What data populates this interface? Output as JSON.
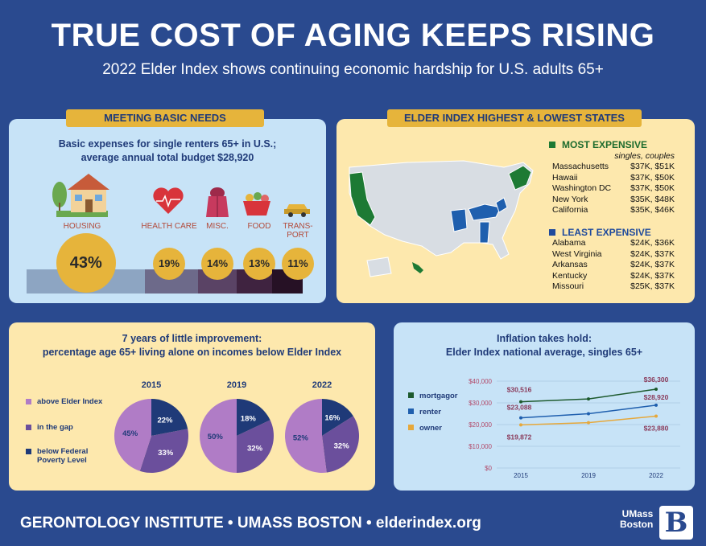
{
  "header": {
    "title": "TRUE COST OF AGING KEEPS RISING",
    "subtitle": "2022 Elder Index shows continuing economic hardship for U.S. adults 65+"
  },
  "basic_needs": {
    "tag": "MEETING BASIC NEEDS",
    "heading_line1": "Basic expenses for single renters 65+ in U.S.;",
    "heading_line2": "average annual total budget $28,920"
  },
  "states": {
    "tag": "ELDER INDEX HIGHEST & LOWEST STATES",
    "most_label": "MOST EXPENSIVE",
    "least_label": "LEAST EXPENSIVE",
    "subheader": "singles, couples",
    "most": [
      {
        "state": "Massachusetts",
        "value": "$37K, $51K"
      },
      {
        "state": "Hawaii",
        "value": "$37K, $50K"
      },
      {
        "state": "Washington DC",
        "value": "$37K, $50K"
      },
      {
        "state": "New York",
        "value": "$35K, $48K"
      },
      {
        "state": "California",
        "value": "$35K, $46K"
      }
    ],
    "least": [
      {
        "state": "Alabama",
        "value": "$24K, $36K"
      },
      {
        "state": "West Virginia",
        "value": "$24K, $37K"
      },
      {
        "state": "Arkansas",
        "value": "$24K, $37K"
      },
      {
        "state": "Kentucky",
        "value": "$24K, $37K"
      },
      {
        "state": "Missouri",
        "value": "$25K, $37K"
      }
    ],
    "colors": {
      "most": "#1d7a34",
      "least": "#1f5fae",
      "other": "#d8dde3"
    }
  },
  "pies": {
    "heading_line1": "7 years of little improvement:",
    "heading_line2": "percentage age 65+ living alone on incomes below Elder Index",
    "legend": [
      {
        "label": "above Elder Index",
        "color": "#b07cc6"
      },
      {
        "label": "in the gap",
        "color": "#6b4f9c"
      },
      {
        "label": "below Federal",
        "label2": "Poverty Level",
        "color": "#1f3a78"
      }
    ]
  },
  "inflation": {
    "heading_line1": "Inflation takes hold:",
    "heading_line2": "Elder Index national average, singles 65+"
  },
  "footer": {
    "text": "GERONTOLOGY INSTITUTE • UMASS BOSTON • elderindex.org",
    "logo_line1": "UMass",
    "logo_line2": "Boston",
    "logo_letter": "B"
  },
  "chart_data": [
    {
      "type": "bar",
      "categories": [
        "HOUSING",
        "HEALTH CARE",
        "MISC.",
        "FOOD",
        "TRANS-PORT"
      ],
      "values": [
        43,
        19,
        14,
        13,
        11
      ],
      "value_labels": [
        "43%",
        "19%",
        "14%",
        "13%",
        "11%"
      ],
      "colors": [
        "#8da5c2",
        "#6d6a8a",
        "#5a4365",
        "#3f2340",
        "#261125"
      ]
    },
    {
      "type": "pie",
      "years": [
        {
          "year": "2015",
          "slices": [
            {
              "name": "below Federal Poverty Level",
              "value": 22,
              "label": "22%"
            },
            {
              "name": "in the gap",
              "value": 33,
              "label": "33%"
            },
            {
              "name": "above Elder Index",
              "value": 45,
              "label": "45%"
            }
          ]
        },
        {
          "year": "2019",
          "slices": [
            {
              "name": "below Federal Poverty Level",
              "value": 18,
              "label": "18%"
            },
            {
              "name": "in the gap",
              "value": 32,
              "label": "32%"
            },
            {
              "name": "above Elder Index",
              "value": 50,
              "label": "50%"
            }
          ]
        },
        {
          "year": "2022",
          "slices": [
            {
              "name": "below Federal Poverty Level",
              "value": 16,
              "label": "16%"
            },
            {
              "name": "in the gap",
              "value": 32,
              "label": "32%"
            },
            {
              "name": "above Elder Index",
              "value": 52,
              "label": "52%"
            }
          ]
        }
      ],
      "colors": {
        "below Federal Poverty Level": "#1f3a78",
        "in the gap": "#6b4f9c",
        "above Elder Index": "#b07cc6"
      }
    },
    {
      "type": "line",
      "x": [
        "2015",
        "2019",
        "2022"
      ],
      "yticks": [
        "$0",
        "$10,000",
        "$20,000",
        "$30,000",
        "$40,000"
      ],
      "ylim": [
        0,
        40000
      ],
      "grid": true,
      "legend_position": "left",
      "series": [
        {
          "name": "mortgagor",
          "values": [
            30516,
            31800,
            36300
          ],
          "labels": [
            "$30,516",
            "",
            "$36,300"
          ],
          "color": "#1d5a2e"
        },
        {
          "name": "renter",
          "values": [
            23088,
            25000,
            28920
          ],
          "labels": [
            "$23,088",
            "",
            "$28,920"
          ],
          "color": "#1f5fae"
        },
        {
          "name": "owner",
          "values": [
            19872,
            20900,
            23880
          ],
          "labels": [
            "$19,872",
            "",
            "$23,880"
          ],
          "color": "#e6a83b"
        }
      ]
    }
  ]
}
